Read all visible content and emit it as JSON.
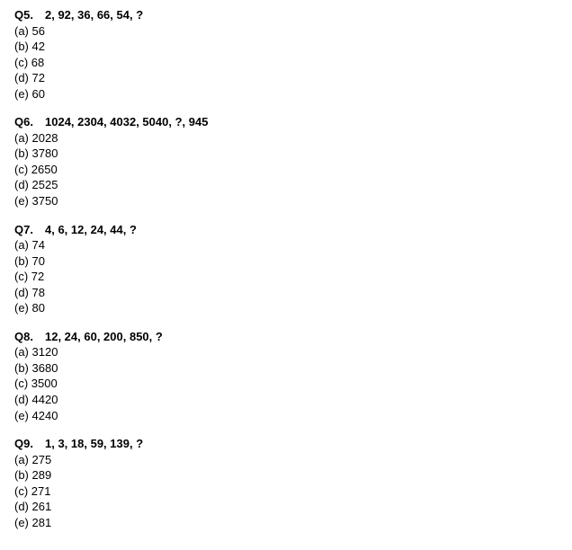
{
  "questions": [
    {
      "id": "q5",
      "number": "Q5.",
      "sequence": "2, 92, 36, 66, 54, ?",
      "options": [
        {
          "label": "(a)",
          "value": "56"
        },
        {
          "label": "(b)",
          "value": "42"
        },
        {
          "label": "(c)",
          "value": "68"
        },
        {
          "label": "(d)",
          "value": "72"
        },
        {
          "label": "(e)",
          "value": "60"
        }
      ]
    },
    {
      "id": "q6",
      "number": "Q6.",
      "sequence": "1024, 2304, 4032, 5040, ?, 945",
      "options": [
        {
          "label": "(a)",
          "value": "2028"
        },
        {
          "label": "(b)",
          "value": "3780"
        },
        {
          "label": "(c)",
          "value": "2650"
        },
        {
          "label": "(d)",
          "value": "2525"
        },
        {
          "label": "(e)",
          "value": "3750"
        }
      ]
    },
    {
      "id": "q7",
      "number": "Q7.",
      "sequence": "4, 6, 12, 24, 44, ?",
      "options": [
        {
          "label": "(a)",
          "value": "74"
        },
        {
          "label": "(b)",
          "value": "70"
        },
        {
          "label": "(c)",
          "value": "72"
        },
        {
          "label": "(d)",
          "value": "78"
        },
        {
          "label": "(e)",
          "value": "80"
        }
      ]
    },
    {
      "id": "q8",
      "number": "Q8.",
      "sequence": "12, 24, 60, 200, 850, ?",
      "options": [
        {
          "label": "(a)",
          "value": "3120"
        },
        {
          "label": "(b)",
          "value": "3680"
        },
        {
          "label": "(c)",
          "value": "3500"
        },
        {
          "label": "(d)",
          "value": "4420"
        },
        {
          "label": "(e)",
          "value": "4240"
        }
      ]
    },
    {
      "id": "q9",
      "number": "Q9.",
      "sequence": "1, 3, 18, 59, 139, ?",
      "options": [
        {
          "label": "(a)",
          "value": "275"
        },
        {
          "label": "(b)",
          "value": "289"
        },
        {
          "label": "(c)",
          "value": "271"
        },
        {
          "label": "(d)",
          "value": "261"
        },
        {
          "label": "(e)",
          "value": "281"
        }
      ]
    }
  ]
}
